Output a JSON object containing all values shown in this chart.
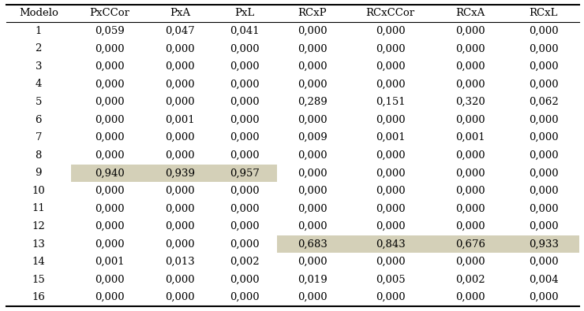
{
  "columns": [
    "Modelo",
    "PxCCor",
    "PxA",
    "PxL",
    "RCxP",
    "RCxCCor",
    "RCxA",
    "RCxL"
  ],
  "rows": [
    [
      "1",
      "0,059",
      "0,047",
      "0,041",
      "0,000",
      "0,000",
      "0,000",
      "0,000"
    ],
    [
      "2",
      "0,000",
      "0,000",
      "0,000",
      "0,000",
      "0,000",
      "0,000",
      "0,000"
    ],
    [
      "3",
      "0,000",
      "0,000",
      "0,000",
      "0,000",
      "0,000",
      "0,000",
      "0,000"
    ],
    [
      "4",
      "0,000",
      "0,000",
      "0,000",
      "0,000",
      "0,000",
      "0,000",
      "0,000"
    ],
    [
      "5",
      "0,000",
      "0,000",
      "0,000",
      "0,289",
      "0,151",
      "0,320",
      "0,062"
    ],
    [
      "6",
      "0,000",
      "0,001",
      "0,000",
      "0,000",
      "0,000",
      "0,000",
      "0,000"
    ],
    [
      "7",
      "0,000",
      "0,000",
      "0,000",
      "0,009",
      "0,001",
      "0,001",
      "0,000"
    ],
    [
      "8",
      "0,000",
      "0,000",
      "0,000",
      "0,000",
      "0,000",
      "0,000",
      "0,000"
    ],
    [
      "9",
      "0,940",
      "0,939",
      "0,957",
      "0,000",
      "0,000",
      "0,000",
      "0,000"
    ],
    [
      "10",
      "0,000",
      "0,000",
      "0,000",
      "0,000",
      "0,000",
      "0,000",
      "0,000"
    ],
    [
      "11",
      "0,000",
      "0,000",
      "0,000",
      "0,000",
      "0,000",
      "0,000",
      "0,000"
    ],
    [
      "12",
      "0,000",
      "0,000",
      "0,000",
      "0,000",
      "0,000",
      "0,000",
      "0,000"
    ],
    [
      "13",
      "0,000",
      "0,000",
      "0,000",
      "0,683",
      "0,843",
      "0,676",
      "0,933"
    ],
    [
      "14",
      "0,001",
      "0,013",
      "0,002",
      "0,000",
      "0,000",
      "0,000",
      "0,000"
    ],
    [
      "15",
      "0,000",
      "0,000",
      "0,000",
      "0,019",
      "0,005",
      "0,002",
      "0,004"
    ],
    [
      "16",
      "0,000",
      "0,000",
      "0,000",
      "0,000",
      "0,000",
      "0,000",
      "0,000"
    ]
  ],
  "highlight_row9_cols": [
    1,
    2,
    3
  ],
  "highlight_row13_cols": [
    4,
    5,
    6,
    7
  ],
  "highlight_color": "#d4d0b8",
  "bg_color": "#ffffff",
  "text_color": "#000000",
  "header_fontsize": 9.5,
  "cell_fontsize": 9.5
}
